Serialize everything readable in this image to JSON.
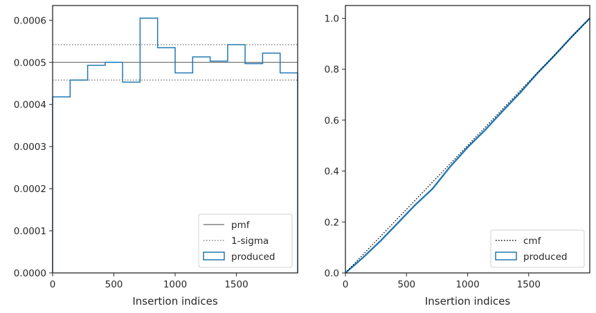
{
  "chart_data": [
    {
      "type": "step-histogram",
      "xlabel": "Insertion indices",
      "ylabel": "",
      "xlim": [
        0,
        2000
      ],
      "ylim": [
        0,
        0.000635
      ],
      "xticks": [
        0,
        500,
        1000,
        1500
      ],
      "xtick_labels": [
        "0",
        "500",
        "1000",
        "1500"
      ],
      "yticks": [
        0,
        0.0001,
        0.0002,
        0.0003,
        0.0004,
        0.0005,
        0.0006
      ],
      "ytick_labels": [
        "0.0000",
        "0.0001",
        "0.0002",
        "0.0003",
        "0.0004",
        "0.0005",
        "0.0006"
      ],
      "bin_edges": [
        0,
        143,
        286,
        429,
        571,
        714,
        857,
        1000,
        1143,
        1286,
        1429,
        1571,
        1714,
        1857,
        2000
      ],
      "series": [
        {
          "name": "produced",
          "style": "step",
          "color": "#1f77b4",
          "values": [
            0.000418,
            0.000458,
            0.000493,
            0.0005,
            0.000453,
            0.000605,
            0.000535,
            0.000475,
            0.000513,
            0.000503,
            0.000542,
            0.000497,
            0.000522,
            0.000475
          ]
        }
      ],
      "reference_lines": [
        {
          "name": "pmf",
          "y": 0.0005,
          "color": "#808080",
          "style": "solid"
        },
        {
          "name": "1-sigma",
          "y": 0.000542,
          "color": "#808080",
          "style": "dotted"
        },
        {
          "name": "1-sigma-lower",
          "y": 0.000458,
          "color": "#808080",
          "style": "dotted"
        }
      ],
      "legend": {
        "placement": "lower-right",
        "entries": [
          "pmf",
          "1-sigma",
          "produced"
        ]
      }
    },
    {
      "type": "line",
      "xlabel": "Insertion indices",
      "ylabel": "",
      "xlim": [
        0,
        2000
      ],
      "ylim": [
        0,
        1.05
      ],
      "xticks": [
        0,
        500,
        1000,
        1500
      ],
      "xtick_labels": [
        "0",
        "500",
        "1000",
        "1500"
      ],
      "yticks": [
        0,
        0.2,
        0.4,
        0.6,
        0.8,
        1.0
      ],
      "ytick_labels": [
        "0.0",
        "0.2",
        "0.4",
        "0.6",
        "0.8",
        "1.0"
      ],
      "series": [
        {
          "name": "cmf",
          "style": "dotted",
          "color": "#000000",
          "x": [
            0,
            2000
          ],
          "y": [
            0,
            1.0
          ]
        },
        {
          "name": "produced",
          "style": "step",
          "color": "#1f77b4",
          "x": [
            0,
            143,
            286,
            429,
            571,
            714,
            857,
            1000,
            1143,
            1286,
            1429,
            1571,
            1714,
            1857,
            2000
          ],
          "y": [
            0,
            0.06,
            0.125,
            0.196,
            0.267,
            0.331,
            0.417,
            0.493,
            0.561,
            0.635,
            0.707,
            0.784,
            0.855,
            0.93,
            1.0
          ]
        }
      ],
      "legend": {
        "placement": "lower-right",
        "entries": [
          "cmf",
          "produced"
        ]
      }
    }
  ]
}
